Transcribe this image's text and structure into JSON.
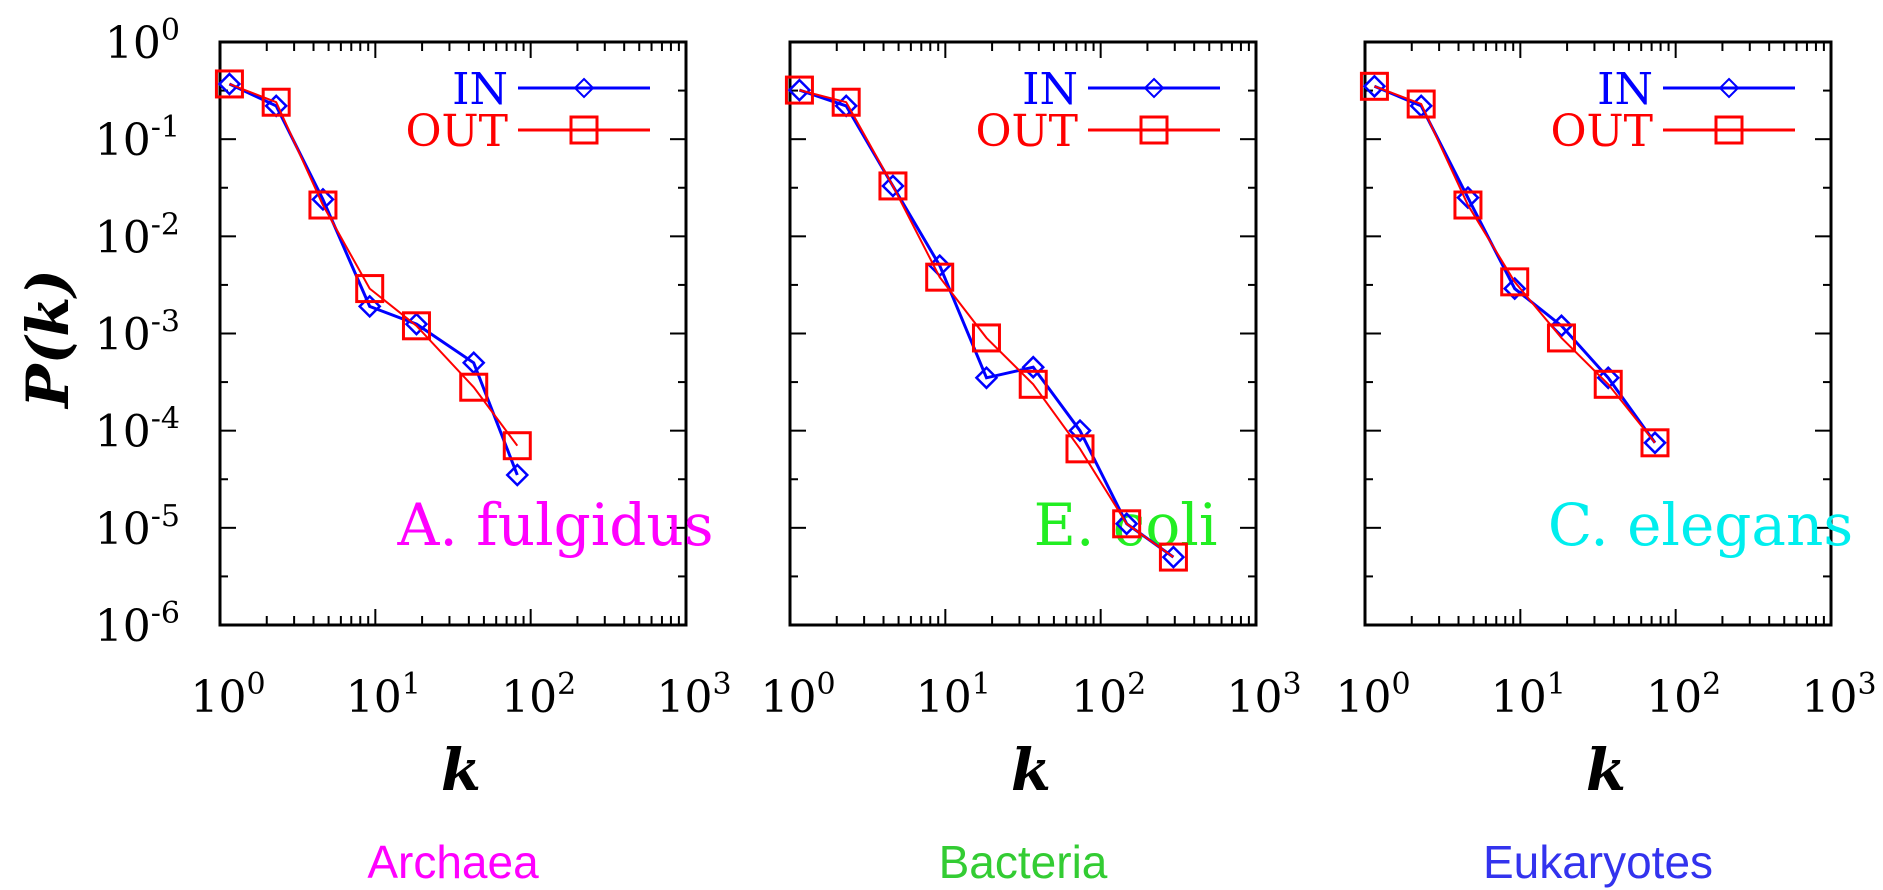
{
  "figure": {
    "y_axis_label": "P(k)",
    "y_tick_labels": [
      {
        "base": "10",
        "exp": "0"
      },
      {
        "base": "10",
        "exp": "-1"
      },
      {
        "base": "10",
        "exp": "-2"
      },
      {
        "base": "10",
        "exp": "-3"
      },
      {
        "base": "10",
        "exp": "-4"
      },
      {
        "base": "10",
        "exp": "-5"
      },
      {
        "base": "10",
        "exp": "-6"
      }
    ],
    "x_tick_labels": [
      {
        "base": "10",
        "exp": "0"
      },
      {
        "base": "10",
        "exp": "1"
      },
      {
        "base": "10",
        "exp": "2"
      },
      {
        "base": "10",
        "exp": "3"
      }
    ],
    "x_axis_label": "k",
    "legend": {
      "in_label": "IN",
      "out_label": "OUT",
      "position": "top-right"
    },
    "colors": {
      "in": "#0000ff",
      "out": "#ff0000",
      "axes": "#000000"
    }
  },
  "chart_data": [
    {
      "type": "line",
      "organism": "A. fulgidus",
      "organism_color": "#ff00ff",
      "kingdom": "Archaea",
      "kingdom_color": "#ff00ff",
      "xscale": "log",
      "yscale": "log",
      "xlim": [
        1,
        1000
      ],
      "ylim": [
        1e-06,
        1
      ],
      "series": [
        {
          "name": "IN",
          "marker": "diamond",
          "color": "#0000ff",
          "x": [
            1.15,
            2.3,
            4.6,
            9.2,
            18.4,
            43,
            82
          ],
          "y": [
            0.37,
            0.22,
            0.024,
            0.0019,
            0.00125,
            0.0005,
            3.5e-05
          ]
        },
        {
          "name": "OUT",
          "marker": "square",
          "color": "#ff0000",
          "x": [
            1.15,
            2.3,
            4.6,
            9.2,
            18.4,
            43,
            82
          ],
          "y": [
            0.37,
            0.24,
            0.021,
            0.0029,
            0.0012,
            0.00028,
            7e-05
          ]
        }
      ]
    },
    {
      "type": "line",
      "organism": "E. coli",
      "organism_color": "#22ee22",
      "kingdom": "Bacteria",
      "kingdom_color": "#33cc33",
      "xscale": "log",
      "yscale": "log",
      "xlim": [
        1,
        1000
      ],
      "ylim": [
        1e-06,
        1
      ],
      "series": [
        {
          "name": "IN",
          "marker": "diamond",
          "color": "#0000ff",
          "x": [
            1.15,
            2.3,
            4.6,
            9.2,
            18.4,
            36.8,
            73.6,
            147,
            294
          ],
          "y": [
            0.32,
            0.22,
            0.033,
            0.005,
            0.00035,
            0.00045,
            0.0001,
            1.1e-05,
            5e-06
          ]
        },
        {
          "name": "OUT",
          "marker": "square",
          "color": "#ff0000",
          "x": [
            1.15,
            2.3,
            4.6,
            9.2,
            18.4,
            36.8,
            73.6,
            147,
            294
          ],
          "y": [
            0.32,
            0.24,
            0.033,
            0.0038,
            0.0009,
            0.0003,
            6.5e-05,
            1.1e-05,
            5e-06
          ]
        }
      ]
    },
    {
      "type": "line",
      "organism": "C. elegans",
      "organism_color": "#00eeee",
      "kingdom": "Eukaryotes",
      "kingdom_color": "#3333ee",
      "xscale": "log",
      "yscale": "log",
      "xlim": [
        1,
        1000
      ],
      "ylim": [
        1e-06,
        1
      ],
      "series": [
        {
          "name": "IN",
          "marker": "diamond",
          "color": "#0000ff",
          "x": [
            1.15,
            2.3,
            4.6,
            9.2,
            18.4,
            36.8,
            73.6
          ],
          "y": [
            0.35,
            0.22,
            0.025,
            0.0029,
            0.0012,
            0.00035,
            7.5e-05
          ]
        },
        {
          "name": "OUT",
          "marker": "square",
          "color": "#ff0000",
          "x": [
            1.15,
            2.3,
            4.6,
            9.2,
            18.4,
            36.8,
            73.6
          ],
          "y": [
            0.35,
            0.23,
            0.021,
            0.0034,
            0.0009,
            0.0003,
            7.5e-05
          ]
        }
      ]
    }
  ]
}
